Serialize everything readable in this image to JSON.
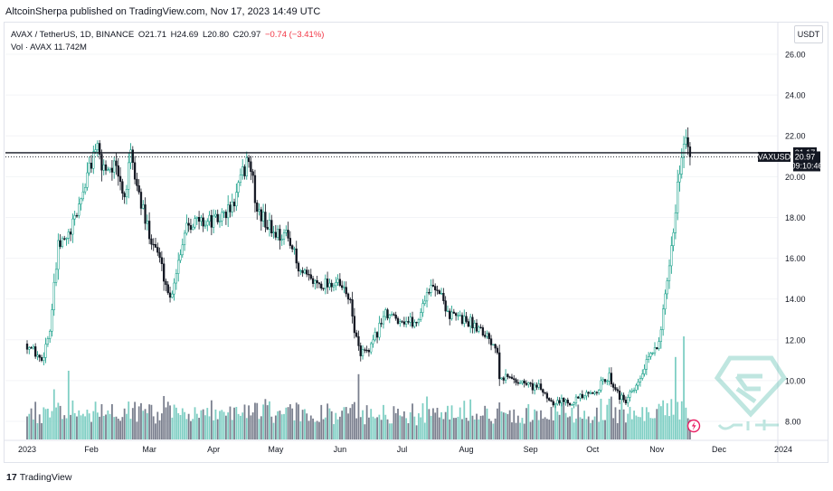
{
  "header": {
    "publisher_line": "AltcoinSherpa published on TradingView.com, Nov 17, 2023 14:49 UTC"
  },
  "legend": {
    "symbol": "AVAX / TetherUS, 1D, BINANCE",
    "open": "O21.71",
    "high": "H24.69",
    "low": "L20.80",
    "close": "C20.97",
    "change": "−0.74 (−3.41%)",
    "volume": "Vol · AVAX  11.742M"
  },
  "price_axis": {
    "currency_button": "USDT",
    "ticks": [
      "26.00",
      "24.00",
      "22.00",
      "20.00",
      "18.00",
      "16.00",
      "14.00",
      "12.00",
      "10.00",
      "8.00"
    ],
    "level_label": "21.17",
    "symbol_tag": "AVAXUSDT",
    "last_price": "20.97",
    "countdown": "09:10:46"
  },
  "time_axis": {
    "ticks": [
      "2023",
      "Feb",
      "Mar",
      "Apr",
      "May",
      "Jun",
      "Jul",
      "Aug",
      "Sep",
      "Oct",
      "Nov",
      "Dec",
      "2024"
    ]
  },
  "footer": {
    "brand": "TradingView"
  },
  "colors": {
    "up": "#089981",
    "down": "#131722",
    "volume_up": "#7fcfc4",
    "volume_down": "#7a7f8e",
    "level_line": "#131722",
    "watermark": "#4bb8a8"
  },
  "chart_data": {
    "type": "candlestick",
    "symbol": "AVAX/USDT",
    "interval": "1D",
    "ylim": [
      7.0,
      27.0
    ],
    "horizontal_level": 21.17,
    "last_price": 20.97,
    "anchors": [
      {
        "date": "2023-01-01",
        "price": 11.8
      },
      {
        "date": "2023-01-08",
        "price": 11.0
      },
      {
        "date": "2023-01-12",
        "price": 12.5
      },
      {
        "date": "2023-01-16",
        "price": 16.5
      },
      {
        "date": "2023-01-22",
        "price": 17.2
      },
      {
        "date": "2023-01-30",
        "price": 20.0
      },
      {
        "date": "2023-02-03",
        "price": 21.5
      },
      {
        "date": "2023-02-06",
        "price": 20.5
      },
      {
        "date": "2023-02-12",
        "price": 20.5
      },
      {
        "date": "2023-02-17",
        "price": 19.0
      },
      {
        "date": "2023-02-20",
        "price": 20.9
      },
      {
        "date": "2023-02-27",
        "price": 17.8
      },
      {
        "date": "2023-03-05",
        "price": 16.3
      },
      {
        "date": "2023-03-11",
        "price": 14.0
      },
      {
        "date": "2023-03-19",
        "price": 17.8
      },
      {
        "date": "2023-04-02",
        "price": 17.8
      },
      {
        "date": "2023-04-10",
        "price": 18.5
      },
      {
        "date": "2023-04-18",
        "price": 21.0
      },
      {
        "date": "2023-04-22",
        "price": 18.3
      },
      {
        "date": "2023-04-30",
        "price": 17.3
      },
      {
        "date": "2023-05-08",
        "price": 17.0
      },
      {
        "date": "2023-05-12",
        "price": 15.3
      },
      {
        "date": "2023-05-20",
        "price": 14.8
      },
      {
        "date": "2023-05-30",
        "price": 14.8
      },
      {
        "date": "2023-06-05",
        "price": 14.2
      },
      {
        "date": "2023-06-10",
        "price": 11.5
      },
      {
        "date": "2023-06-15",
        "price": 11.3
      },
      {
        "date": "2023-06-22",
        "price": 13.2
      },
      {
        "date": "2023-07-01",
        "price": 13.0
      },
      {
        "date": "2023-07-08",
        "price": 12.8
      },
      {
        "date": "2023-07-13",
        "price": 14.4
      },
      {
        "date": "2023-07-18",
        "price": 14.6
      },
      {
        "date": "2023-07-24",
        "price": 13.2
      },
      {
        "date": "2023-07-31",
        "price": 13.0
      },
      {
        "date": "2023-08-08",
        "price": 12.6
      },
      {
        "date": "2023-08-16",
        "price": 11.6
      },
      {
        "date": "2023-08-17",
        "price": 10.3
      },
      {
        "date": "2023-08-31",
        "price": 9.8
      },
      {
        "date": "2023-09-06",
        "price": 9.6
      },
      {
        "date": "2023-09-11",
        "price": 9.0
      },
      {
        "date": "2023-09-20",
        "price": 9.0
      },
      {
        "date": "2023-09-30",
        "price": 9.3
      },
      {
        "date": "2023-10-09",
        "price": 10.2
      },
      {
        "date": "2023-10-16",
        "price": 8.9
      },
      {
        "date": "2023-10-22",
        "price": 9.6
      },
      {
        "date": "2023-10-26",
        "price": 10.6
      },
      {
        "date": "2023-11-02",
        "price": 12.0
      },
      {
        "date": "2023-11-07",
        "price": 15.3
      },
      {
        "date": "2023-11-11",
        "price": 19.5
      },
      {
        "date": "2023-11-14",
        "price": 22.0
      },
      {
        "date": "2023-11-16",
        "price": 21.7
      },
      {
        "date": "2023-11-17",
        "price": 20.97
      }
    ],
    "volume_spikes": [
      {
        "date": "2023-01-21",
        "volume": 4.0
      },
      {
        "date": "2023-02-03",
        "volume": 2.2
      },
      {
        "date": "2023-02-17",
        "volume": 1.8
      },
      {
        "date": "2023-04-19",
        "volume": 1.4
      },
      {
        "date": "2023-06-10",
        "volume": 3.8
      },
      {
        "date": "2023-07-13",
        "volume": 2.5
      },
      {
        "date": "2023-11-10",
        "volume": 4.8
      },
      {
        "date": "2023-11-14",
        "volume": 6.0
      }
    ]
  }
}
